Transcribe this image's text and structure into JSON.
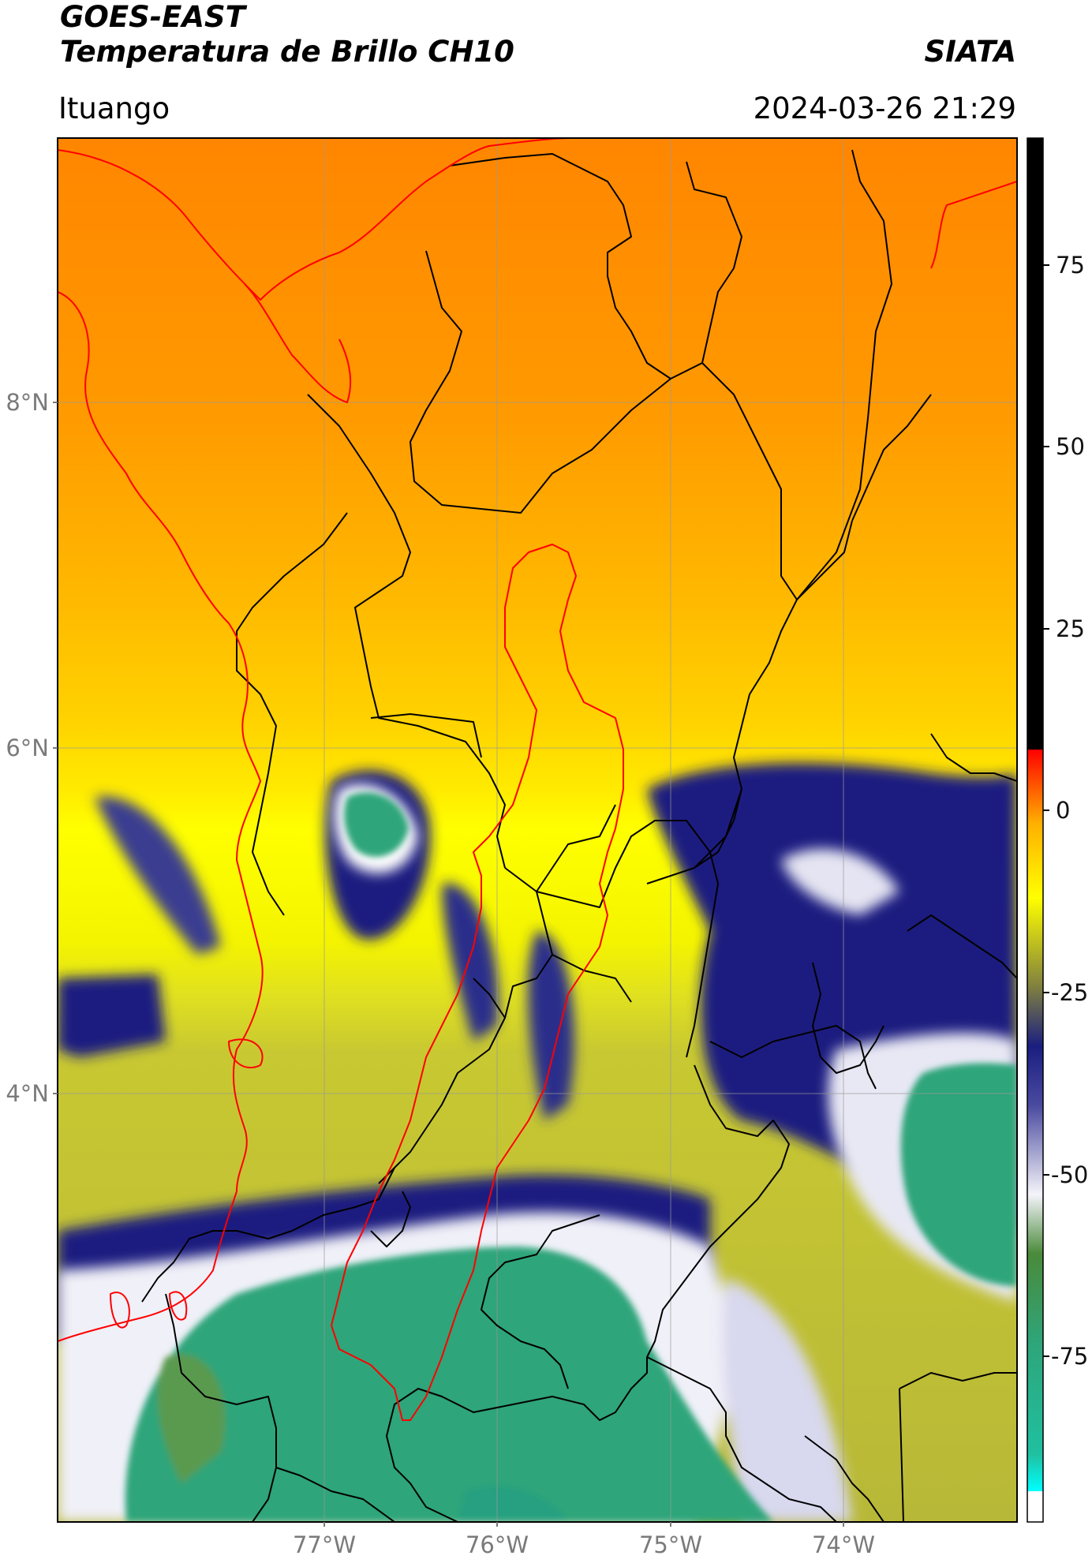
{
  "header": {
    "satellite": "GOES-EAST",
    "product": "Temperatura de Brillo CH10",
    "brand": "SIATA",
    "region": "Ituango",
    "datetime": "2024-03-26 21:29"
  },
  "map": {
    "lat_labels": [
      "8°N",
      "6°N",
      "4°N"
    ],
    "lon_labels": [
      "77°W",
      "76°W",
      "75°W",
      "74°W"
    ],
    "colors": {
      "warm": "#ff8c00",
      "yellow": "#ffff00",
      "olive": "#c8c832",
      "navy": "#1a1e80",
      "white": "#f4f4fa",
      "green": "#2ea57a",
      "boundary": "#000000",
      "coast": "#ff0000"
    }
  },
  "colorbar": {
    "labels": [
      "75",
      "50",
      "25",
      "0",
      "-25",
      "-50",
      "-75"
    ]
  }
}
